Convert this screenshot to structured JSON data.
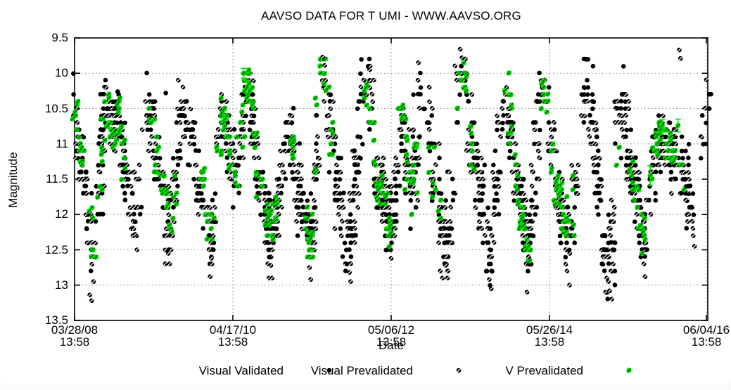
{
  "title": "AAVSO DATA FOR T UMI - WWW.AAVSO.ORG",
  "window": {
    "background": "#ffffff",
    "frame_background": "#fafafa"
  },
  "legend": {
    "items": [
      {
        "label": "Visual Validated",
        "marker": "filled-circle",
        "color": "#000000"
      },
      {
        "label": "Visual Prevalidated",
        "marker": "slashed-circle",
        "color": "#000000"
      },
      {
        "label": "V Prevalidated",
        "marker": "slashed-circle",
        "color": "#00dc00"
      }
    ]
  },
  "chart_data": {
    "type": "scatter",
    "title": "AAVSO DATA FOR T UMI - WWW.AAVSO.ORG",
    "xlabel": "Date",
    "ylabel": "Magnitude",
    "grid": {
      "show": true,
      "style": "dotted",
      "color": "#858585"
    },
    "axis_color": "#000000",
    "y_axis": {
      "min": 9.5,
      "max": 13.5,
      "inverted": true,
      "ticks": [
        9.5,
        10,
        10.5,
        11,
        11.5,
        12,
        12.5,
        13,
        13.5
      ],
      "tick_labels": [
        "9.5",
        "10",
        "10.5",
        "11",
        "11.5",
        "12",
        "12.5",
        "13",
        "13.5"
      ]
    },
    "x_axis": {
      "ticks": [
        {
          "pos": 0.0,
          "date": "03/28/08",
          "time": "13:58"
        },
        {
          "pos": 0.25,
          "date": "04/17/10",
          "time": "13:58"
        },
        {
          "pos": 0.5,
          "date": "05/06/12",
          "time": "13:58"
        },
        {
          "pos": 0.75,
          "date": "05/26/14",
          "time": "13:58"
        },
        {
          "pos": 0.9978,
          "date": "06/04/16",
          "time": "13:58"
        }
      ]
    },
    "series": [
      {
        "name": "Visual Validated",
        "marker": "filled-circle",
        "color": "#000000",
        "radius": 3.3
      },
      {
        "name": "Visual Prevalidated",
        "marker": "slashed-circle",
        "color": "#000000",
        "slash_color": "#ffffff",
        "radius": 3.3
      },
      {
        "name": "V Prevalidated",
        "marker": "slashed-circle",
        "color": "#00dc00",
        "slash_color": "#004d00",
        "radius": 3.7
      }
    ],
    "light_curve_envelope": [
      [
        0.0,
        10.55
      ],
      [
        0.009,
        11.15
      ],
      [
        0.02,
        11.9
      ],
      [
        0.029,
        12.75
      ],
      [
        0.04,
        11.6
      ],
      [
        0.048,
        10.35
      ],
      [
        0.058,
        10.85
      ],
      [
        0.068,
        10.55
      ],
      [
        0.08,
        11.4
      ],
      [
        0.094,
        12.0
      ],
      [
        0.104,
        11.1
      ],
      [
        0.116,
        10.45
      ],
      [
        0.138,
        11.6
      ],
      [
        0.15,
        12.15
      ],
      [
        0.175,
        10.45
      ],
      [
        0.199,
        11.6
      ],
      [
        0.213,
        12.35
      ],
      [
        0.237,
        10.55
      ],
      [
        0.254,
        11.45
      ],
      [
        0.273,
        10.15
      ],
      [
        0.296,
        11.6
      ],
      [
        0.31,
        12.35
      ],
      [
        0.337,
        10.75
      ],
      [
        0.357,
        11.75
      ],
      [
        0.37,
        12.4
      ],
      [
        0.393,
        10.05
      ],
      [
        0.416,
        11.55
      ],
      [
        0.432,
        12.5
      ],
      [
        0.459,
        10.1
      ],
      [
        0.485,
        11.65
      ],
      [
        0.498,
        12.3
      ],
      [
        0.517,
        10.65
      ],
      [
        0.532,
        11.75
      ],
      [
        0.547,
        10.05
      ],
      [
        0.572,
        11.55
      ],
      [
        0.585,
        12.4
      ],
      [
        0.612,
        10.05
      ],
      [
        0.64,
        11.65
      ],
      [
        0.654,
        12.6
      ],
      [
        0.679,
        10.3
      ],
      [
        0.702,
        11.7
      ],
      [
        0.716,
        12.4
      ],
      [
        0.74,
        10.25
      ],
      [
        0.765,
        11.8
      ],
      [
        0.78,
        12.3
      ],
      [
        0.809,
        10.1
      ],
      [
        0.831,
        11.75
      ],
      [
        0.842,
        12.8
      ],
      [
        0.865,
        10.45
      ],
      [
        0.885,
        11.5
      ],
      [
        0.898,
        12.35
      ],
      [
        0.923,
        10.95
      ],
      [
        0.942,
        11.05
      ],
      [
        0.96,
        11.3
      ],
      [
        0.975,
        11.8
      ],
      [
        0.99,
        10.95
      ],
      [
        1.0,
        10.5
      ]
    ],
    "outliers_bright": [
      [
        0.068,
        10.26,
        "v"
      ],
      [
        0.144,
        10.28,
        "v"
      ],
      [
        0.392,
        9.77,
        "p"
      ],
      [
        0.395,
        9.89,
        "p"
      ],
      [
        0.466,
        9.95,
        "p"
      ],
      [
        0.543,
        9.85,
        "p"
      ],
      [
        0.609,
        9.66,
        "p"
      ],
      [
        0.612,
        9.78,
        "p"
      ],
      [
        0.955,
        9.67,
        "p"
      ],
      [
        0.957,
        9.79,
        "p"
      ]
    ],
    "outliers_faint": [
      [
        0.024,
        13.14,
        "p"
      ],
      [
        0.027,
        13.22,
        "p"
      ],
      [
        0.03,
        12.95,
        "p"
      ],
      [
        0.096,
        12.28,
        "p"
      ],
      [
        0.148,
        12.55,
        "p"
      ],
      [
        0.214,
        12.88,
        "p"
      ],
      [
        0.216,
        12.62,
        "p"
      ],
      [
        0.31,
        12.72,
        "p"
      ],
      [
        0.312,
        12.9,
        "p"
      ],
      [
        0.371,
        12.75,
        "p"
      ],
      [
        0.373,
        12.92,
        "p"
      ],
      [
        0.434,
        12.82,
        "p"
      ],
      [
        0.436,
        12.95,
        "p"
      ],
      [
        0.5,
        12.62,
        "p"
      ],
      [
        0.586,
        12.72,
        "p"
      ],
      [
        0.589,
        12.9,
        "p"
      ],
      [
        0.655,
        12.92,
        "p"
      ],
      [
        0.658,
        13.05,
        "p"
      ],
      [
        0.717,
        12.6,
        "p"
      ],
      [
        0.782,
        12.55,
        "p"
      ],
      [
        0.843,
        12.95,
        "p"
      ],
      [
        0.845,
        13.08,
        "p"
      ],
      [
        0.899,
        12.7,
        "p"
      ],
      [
        0.901,
        12.88,
        "p"
      ],
      [
        0.977,
        12.3,
        "p"
      ],
      [
        0.979,
        12.45,
        "p"
      ]
    ],
    "error_bars": [
      {
        "t": 0.267,
        "mag": 10.0,
        "half": 0.07
      },
      {
        "t": 0.909,
        "mag": 11.45,
        "half": 0.14
      },
      {
        "t": 0.928,
        "mag": 10.74,
        "half": 0.09
      },
      {
        "t": 0.953,
        "mag": 10.74,
        "half": 0.09
      }
    ],
    "generator": {
      "seed": 20080328,
      "columns": 290,
      "gap_probability": 0.22,
      "black_sigma": 0.22,
      "green_sigma": 0.14,
      "quantize_black": 0.1,
      "quantize_green": 0.05,
      "x_jitter_black": 11,
      "x_jitter_green": 9,
      "green_segments": 50,
      "green_prob_bright": 0.66,
      "green_prob_faint": 0.36,
      "prevalidated_fraction": 0.45
    }
  }
}
